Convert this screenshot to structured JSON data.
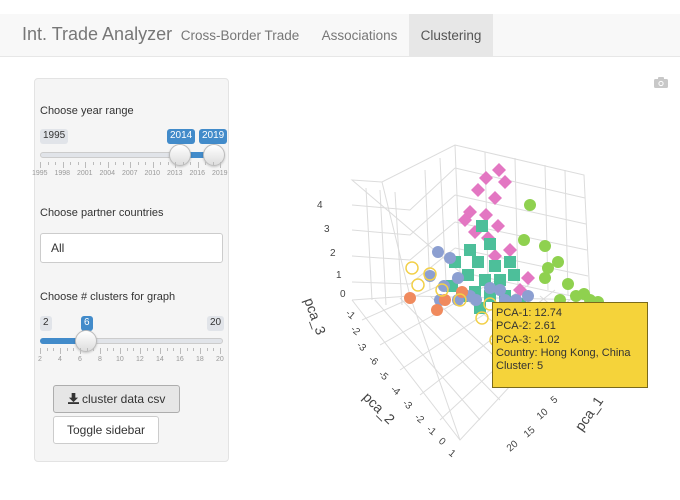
{
  "nav": {
    "brand": "Int. Trade Analyzer",
    "tabs": [
      {
        "label": "Cross-Border Trade",
        "active": false
      },
      {
        "label": "Associations",
        "active": false
      },
      {
        "label": "Clustering",
        "active": true
      }
    ]
  },
  "sidebar": {
    "year_range": {
      "label": "Choose year range",
      "min": "1995",
      "max": "2019",
      "from": "2014",
      "to": "2019",
      "tick_labels": [
        "1995",
        "1998",
        "2001",
        "2004",
        "2007",
        "2010",
        "2013",
        "2016",
        "2019"
      ]
    },
    "partners": {
      "label": "Choose partner countries",
      "value": "All"
    },
    "clusters": {
      "label": "Choose # clusters for graph",
      "min": "2",
      "max": "20",
      "value": "6",
      "tick_labels": [
        "2",
        "4",
        "6",
        "8",
        "10",
        "12",
        "14",
        "16",
        "18",
        "20"
      ]
    },
    "download_button": "cluster data csv",
    "toggle_button": "Toggle sidebar"
  },
  "plot": {
    "toolbar_icon": "camera-icon",
    "axes": {
      "x": {
        "title": "pca_1",
        "ticks": [
          "20",
          "15",
          "10",
          "5"
        ]
      },
      "y": {
        "title": "pca_2",
        "ticks": [
          "-6",
          "-5",
          "-4",
          "-3",
          "-2",
          "-1",
          "0",
          "1"
        ]
      },
      "z": {
        "title": "pca_3",
        "ticks": [
          "4",
          "3",
          "2",
          "1",
          "0",
          "-1",
          "-2",
          "-3"
        ]
      }
    },
    "tooltip": {
      "line1": "PCA-1: 12.74",
      "line2": "PCA-2: 2.61",
      "line3": "PCA-3: -1.02",
      "line4": "Country: Hong Kong, China",
      "line5": "Cluster: 5"
    },
    "colors": {
      "cluster_pink": "#e377c2",
      "cluster_teal": "#4dbf9a",
      "cluster_lavender": "#8c9fd1",
      "cluster_green": "#8fd14f",
      "cluster_orange": "#f08a5d",
      "cluster_yellow_open": "#f2d04a",
      "tooltip_bg": "#f5d33a",
      "accent": "#428bca"
    }
  }
}
